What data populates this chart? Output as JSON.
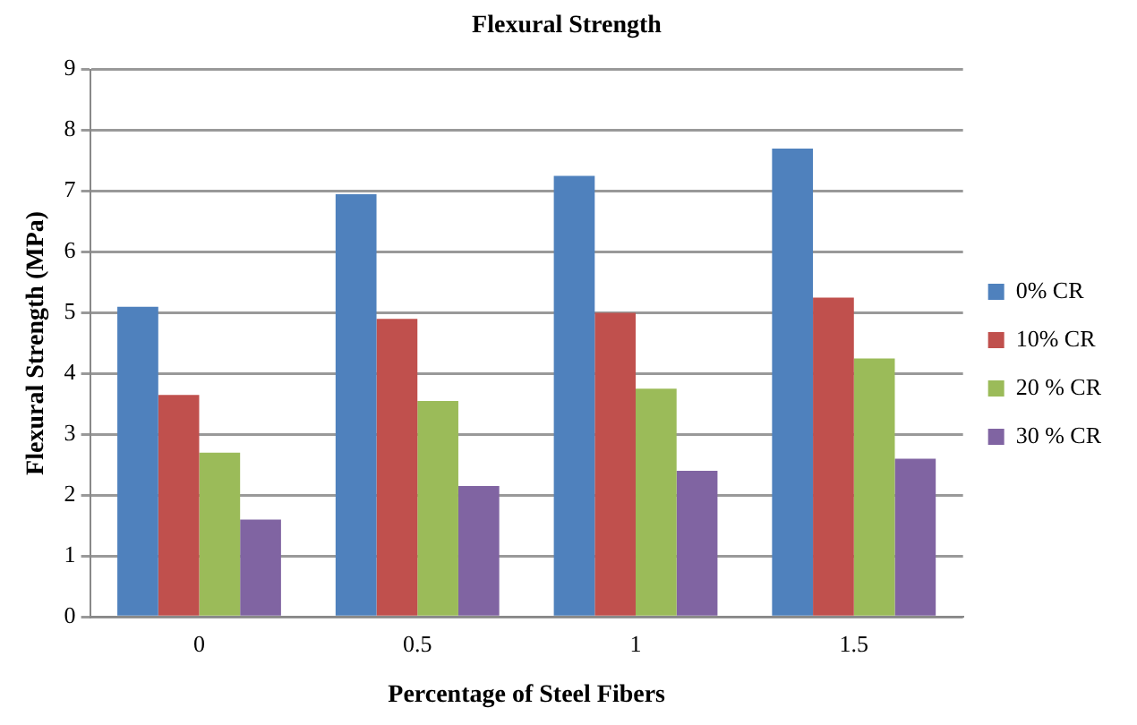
{
  "chart_data": {
    "type": "bar",
    "title": "Flexural Strength",
    "xlabel": "Percentage of Steel Fibers",
    "ylabel": "Flexural Strength (MPa)",
    "categories": [
      "0",
      "0.5",
      "1",
      "1.5"
    ],
    "series": [
      {
        "name": "0% CR",
        "color": "#4f81bd",
        "values": [
          5.1,
          6.95,
          7.25,
          7.7
        ]
      },
      {
        "name": "10% CR",
        "color": "#c0504d",
        "values": [
          3.65,
          4.9,
          5.0,
          5.25
        ]
      },
      {
        "name": "20 % CR",
        "color": "#9bbb59",
        "values": [
          2.7,
          3.55,
          3.75,
          4.25
        ]
      },
      {
        "name": "30 % CR",
        "color": "#8064a2",
        "values": [
          1.6,
          2.15,
          2.4,
          2.6
        ]
      }
    ],
    "ylim": [
      0,
      9
    ],
    "yticks": [
      0,
      1,
      2,
      3,
      4,
      5,
      6,
      7,
      8,
      9
    ],
    "grid": "y",
    "legend": "right"
  }
}
